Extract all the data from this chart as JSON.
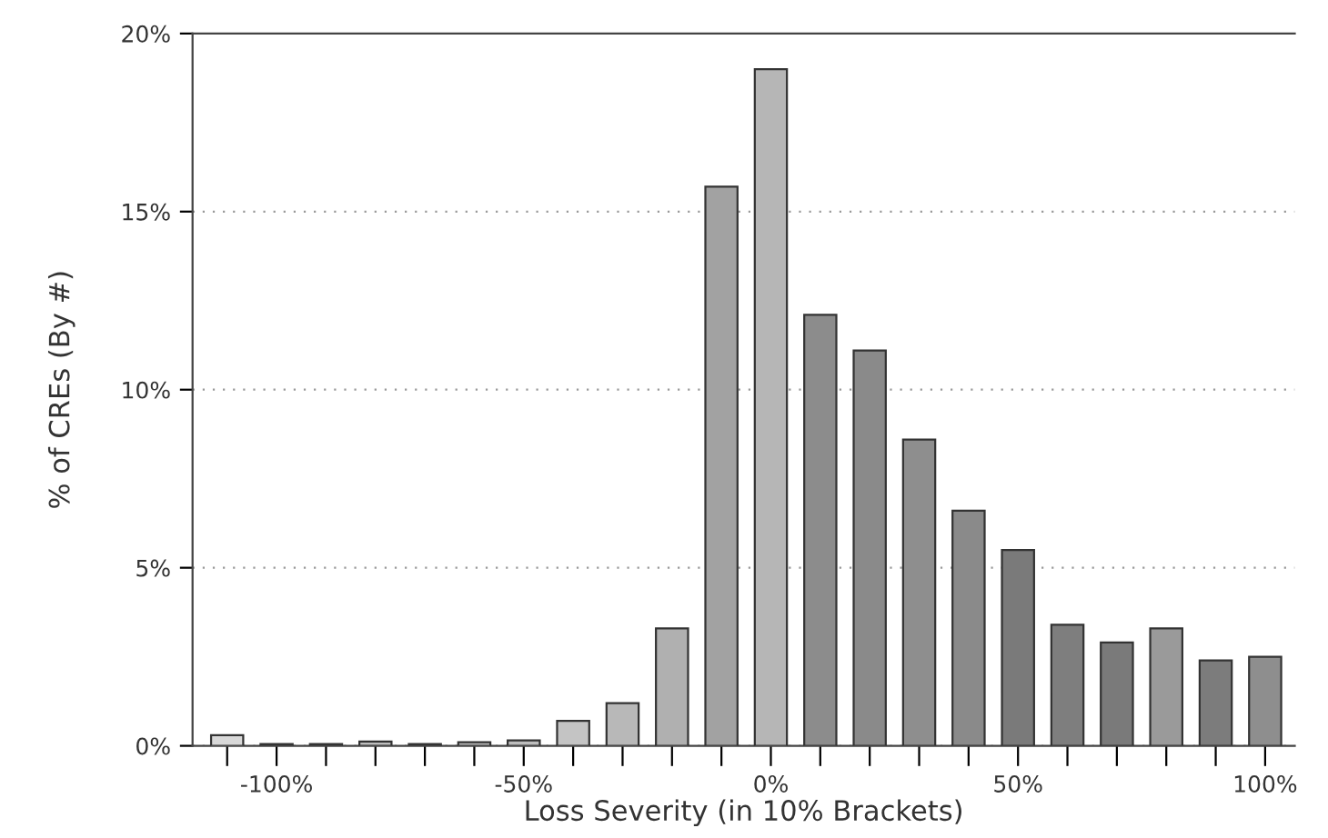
{
  "chart_data": {
    "type": "bar",
    "xlabel": "Loss Severity (in 10% Brackets)",
    "ylabel": "% of CREs (By #)",
    "categories": [
      null,
      "-100%",
      null,
      null,
      null,
      null,
      "-50%",
      null,
      null,
      null,
      null,
      "0%",
      null,
      null,
      null,
      null,
      "50%",
      null,
      null,
      null,
      null,
      "100%"
    ],
    "values": [
      0.3,
      0.05,
      0.05,
      0.12,
      0.05,
      0.1,
      0.15,
      0.7,
      1.2,
      3.3,
      15.7,
      19.0,
      12.1,
      11.1,
      8.6,
      6.6,
      5.5,
      3.4,
      2.9,
      3.3,
      2.4,
      2.5
    ],
    "colors": [
      "#d8d8d8",
      "#8a8a8a",
      "#8a8a8a",
      "#bdbdbd",
      "#8a8a8a",
      "#bdbdbd",
      "#bdbdbd",
      "#c4c4c4",
      "#b8b8b8",
      "#b0b0b0",
      "#a2a2a2",
      "#b6b6b6",
      "#8c8c8c",
      "#8a8a8a",
      "#8e8e8e",
      "#8a8a8a",
      "#7a7a7a",
      "#7e7e7e",
      "#7a7a7a",
      "#9a9a9a",
      "#7c7c7c",
      "#8e8e8e"
    ],
    "ylim": [
      0,
      20
    ],
    "yticks": [
      {
        "value": 0,
        "label": "0%"
      },
      {
        "value": 5,
        "label": "5%"
      },
      {
        "value": 10,
        "label": "10%"
      },
      {
        "value": 15,
        "label": "15%"
      },
      {
        "value": 20,
        "label": "20%"
      }
    ],
    "grid": "y"
  }
}
